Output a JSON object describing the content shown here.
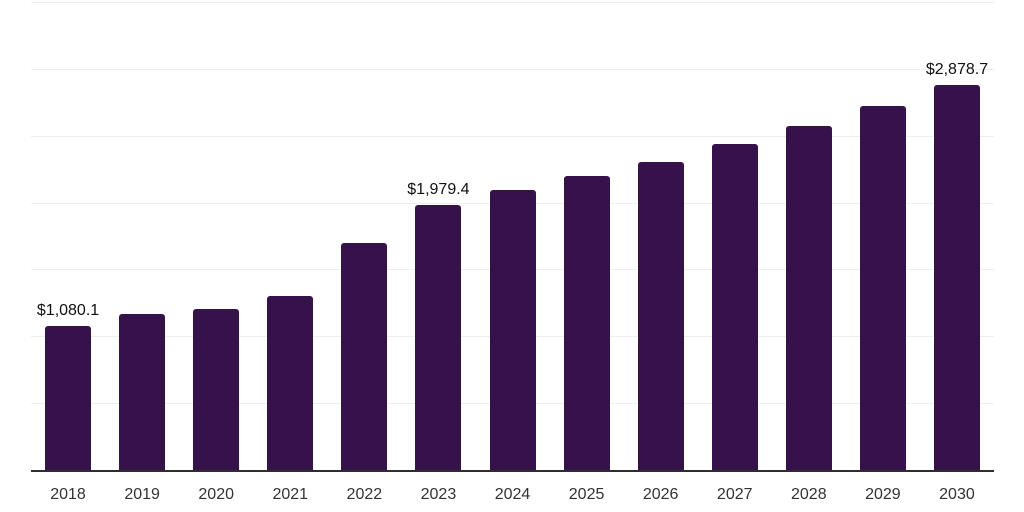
{
  "chart_data": {
    "type": "bar",
    "title": "",
    "xlabel": "",
    "ylabel": "",
    "legend": "none",
    "y_axis_tick_labels_visible": false,
    "ylim": [
      0,
      3500
    ],
    "gridline_step": 500,
    "grid": "horizontal",
    "categories": [
      "2018",
      "2019",
      "2020",
      "2021",
      "2022",
      "2023",
      "2024",
      "2025",
      "2026",
      "2027",
      "2028",
      "2029",
      "2030"
    ],
    "values": [
      1080.1,
      1165,
      1205,
      1305,
      1695,
      1979.4,
      2095,
      2200,
      2305,
      2440,
      2570,
      2720,
      2878.7
    ],
    "points": [
      {
        "category": "2018",
        "value": 1080.1,
        "label": "$1,080.1"
      },
      {
        "category": "2019",
        "value": 1165,
        "label": ""
      },
      {
        "category": "2020",
        "value": 1205,
        "label": ""
      },
      {
        "category": "2021",
        "value": 1305,
        "label": ""
      },
      {
        "category": "2022",
        "value": 1695,
        "label": ""
      },
      {
        "category": "2023",
        "value": 1979.4,
        "label": "$1,979.4"
      },
      {
        "category": "2024",
        "value": 2095,
        "label": ""
      },
      {
        "category": "2025",
        "value": 2200,
        "label": ""
      },
      {
        "category": "2026",
        "value": 2305,
        "label": ""
      },
      {
        "category": "2027",
        "value": 2440,
        "label": ""
      },
      {
        "category": "2028",
        "value": 2570,
        "label": ""
      },
      {
        "category": "2029",
        "value": 2720,
        "label": ""
      },
      {
        "category": "2030",
        "value": 2878.7,
        "label": "$2,878.7"
      }
    ],
    "colors": {
      "bar": "#35124a",
      "data_label": "#111111",
      "tick_label": "#333333",
      "gridline": "#efefef",
      "axis_line": "#2e2e2e",
      "background": "#ffffff"
    }
  }
}
